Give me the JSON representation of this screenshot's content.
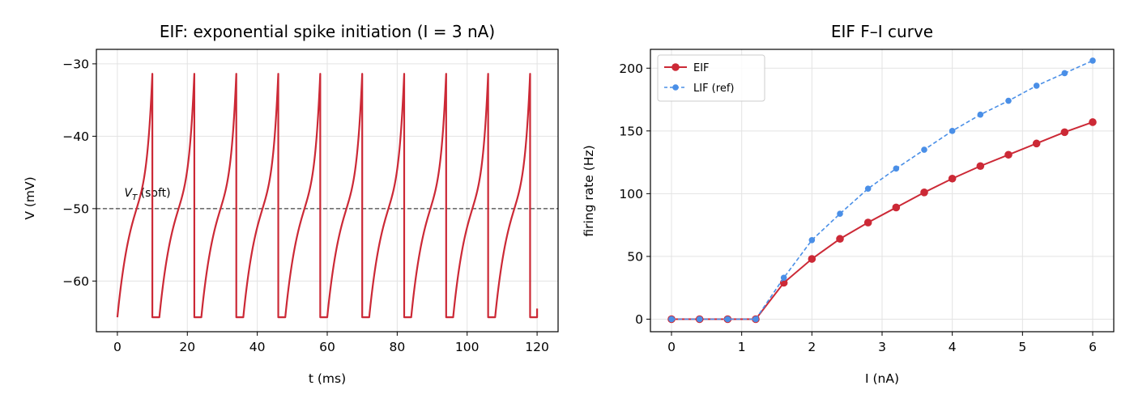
{
  "chart_data": [
    {
      "type": "line",
      "title": "EIF: exponential spike initiation (I = 3 nA)",
      "xlabel": "t (ms)",
      "ylabel": "V (mV)",
      "xlim": [
        -6,
        126
      ],
      "ylim": [
        -67,
        -28
      ],
      "xticks": [
        0,
        20,
        40,
        60,
        80,
        100,
        120
      ],
      "yticks": [
        -60,
        -50,
        -40,
        -30
      ],
      "grid": true,
      "series": [
        {
          "color": "#cc2936",
          "reset_mV": -65,
          "peak_mV": -29.5,
          "refractory_ms": 2,
          "spike_times_ms": [
            10,
            22,
            34,
            46,
            58,
            70,
            82,
            94,
            106,
            118
          ],
          "end": {
            "t": 120,
            "v": -63.8
          }
        }
      ],
      "reference_line": {
        "y": -50,
        "label": "V_T (soft)",
        "color": "#444444",
        "style": "dashed"
      }
    },
    {
      "type": "line",
      "title": "EIF F–I curve",
      "xlabel": "I (nA)",
      "ylabel": "firing rate (Hz)",
      "xlim": [
        -0.3,
        6.3
      ],
      "ylim": [
        -10,
        215
      ],
      "xticks": [
        0,
        1,
        2,
        3,
        4,
        5,
        6
      ],
      "yticks": [
        0,
        50,
        100,
        150,
        200
      ],
      "grid": true,
      "legend": "top-left",
      "x": [
        0,
        0.4,
        0.8,
        1.2,
        1.6,
        2.0,
        2.4,
        2.8,
        3.2,
        3.6,
        4.0,
        4.4,
        4.8,
        5.2,
        5.6,
        6.0
      ],
      "series": [
        {
          "name": "EIF",
          "color": "#cc2936",
          "style": "solid",
          "values": [
            0,
            0,
            0,
            0,
            29,
            48,
            64,
            77,
            89,
            101,
            112,
            122,
            131,
            140,
            149,
            157
          ]
        },
        {
          "name": "LIF (ref)",
          "color": "#4a8fe7",
          "style": "dashed",
          "values": [
            0,
            0,
            0,
            0,
            33,
            63,
            84,
            104,
            120,
            135,
            150,
            163,
            174,
            186,
            196,
            206
          ]
        }
      ]
    }
  ]
}
